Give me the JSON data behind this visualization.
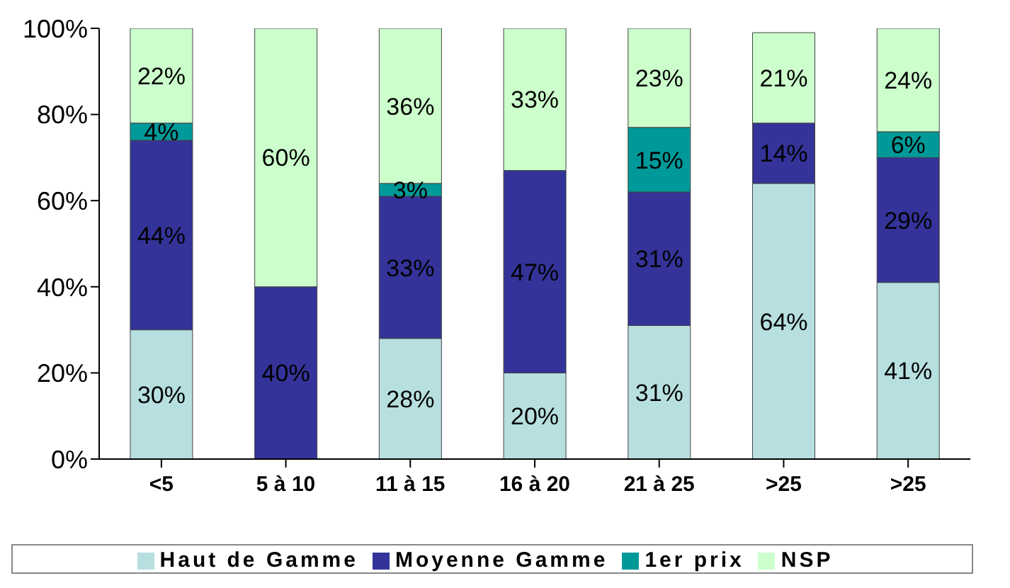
{
  "chart_data": {
    "type": "bar",
    "stacked": true,
    "categories": [
      "<5",
      "5 à 10",
      "11 à 15",
      "16 à 20",
      "21 à 25",
      ">25",
      ">25"
    ],
    "series": [
      {
        "name": "Haut de Gamme",
        "color": "#b7dfe0",
        "values": [
          30,
          0,
          28,
          20,
          31,
          64,
          41
        ],
        "value_labels": [
          "30%",
          null,
          "28%",
          "20%",
          "31%",
          "64%",
          "41%"
        ]
      },
      {
        "name": "Moyenne Gamme",
        "color": "#333399",
        "values": [
          44,
          40,
          33,
          47,
          31,
          14,
          29
        ],
        "value_labels": [
          "44%",
          "40%",
          "33%",
          "47%",
          "31%",
          "14%",
          "29%"
        ]
      },
      {
        "name": "1er prix",
        "color": "#009999",
        "values": [
          4,
          0,
          3,
          0,
          15,
          0,
          6
        ],
        "value_labels": [
          "4%",
          null,
          "3%",
          null,
          "15%",
          null,
          "6%"
        ]
      },
      {
        "name": "NSP",
        "color": "#ccffcc",
        "values": [
          22,
          60,
          36,
          33,
          23,
          21,
          24
        ],
        "value_labels": [
          "22%",
          "60%",
          "36%",
          "33%",
          "23%",
          "21%",
          "24%"
        ]
      }
    ],
    "ylim": [
      0,
      100
    ],
    "yticks": [
      {
        "value": 0,
        "label": "0%"
      },
      {
        "value": 20,
        "label": "20%"
      },
      {
        "value": 40,
        "label": "40%"
      },
      {
        "value": 60,
        "label": "60%"
      },
      {
        "value": 80,
        "label": "80%"
      },
      {
        "value": 100,
        "label": "100%"
      }
    ],
    "grid": false,
    "legend": "bottom"
  }
}
